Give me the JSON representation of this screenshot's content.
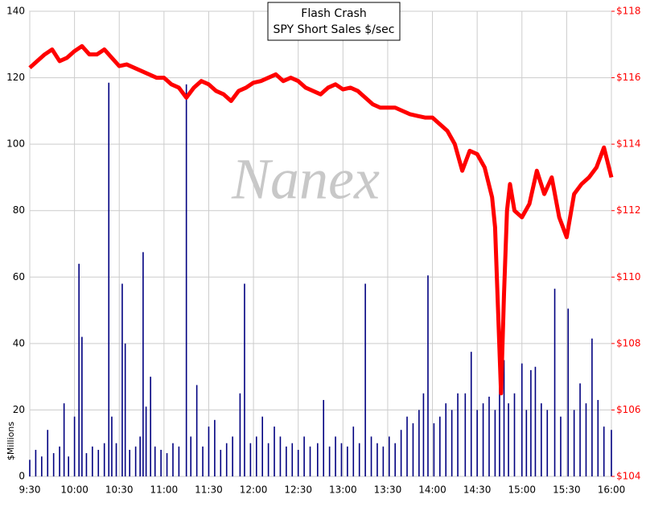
{
  "chart_data": {
    "type": "combo",
    "title": "Flash Crash",
    "subtitle": "SPY Short Sales $/sec",
    "watermark": "Nanex",
    "y_label": "$Millions",
    "grid": true,
    "xlim": [
      570,
      960
    ],
    "xticks": [
      {
        "value": 570,
        "label": "9:30"
      },
      {
        "value": 600,
        "label": "10:00"
      },
      {
        "value": 630,
        "label": "10:30"
      },
      {
        "value": 660,
        "label": "11:00"
      },
      {
        "value": 690,
        "label": "11:30"
      },
      {
        "value": 720,
        "label": "12:00"
      },
      {
        "value": 750,
        "label": "12:30"
      },
      {
        "value": 780,
        "label": "13:00"
      },
      {
        "value": 810,
        "label": "13:30"
      },
      {
        "value": 840,
        "label": "14:00"
      },
      {
        "value": 870,
        "label": "14:30"
      },
      {
        "value": 900,
        "label": "15:00"
      },
      {
        "value": 930,
        "label": "15:30"
      },
      {
        "value": 960,
        "label": "16:00"
      }
    ],
    "ylim": [
      0,
      140
    ],
    "yticks": [
      0,
      20,
      40,
      60,
      80,
      100,
      120,
      140
    ],
    "y2lim": [
      104,
      118
    ],
    "y2ticks": [
      {
        "value": 104,
        "label": "$104"
      },
      {
        "value": 106,
        "label": "$106"
      },
      {
        "value": 108,
        "label": "$108"
      },
      {
        "value": 110,
        "label": "$110"
      },
      {
        "value": 112,
        "label": "$112"
      },
      {
        "value": 114,
        "label": "$114"
      },
      {
        "value": 116,
        "label": "$116"
      },
      {
        "value": 118,
        "label": "$118"
      }
    ],
    "series": [
      {
        "type": "bar",
        "color": "#000080",
        "x": [
          570,
          574,
          578,
          582,
          586,
          590,
          593,
          596,
          600,
          603,
          605,
          608,
          612,
          616,
          620,
          623,
          625,
          628,
          632,
          634,
          637,
          641,
          644,
          646,
          648,
          651,
          654,
          658,
          662,
          666,
          670,
          675,
          678,
          682,
          686,
          690,
          694,
          698,
          702,
          706,
          711,
          714,
          718,
          722,
          726,
          730,
          734,
          738,
          742,
          746,
          750,
          754,
          758,
          763,
          767,
          771,
          775,
          779,
          783,
          787,
          791,
          795,
          799,
          803,
          807,
          811,
          815,
          819,
          823,
          827,
          831,
          834,
          837,
          841,
          845,
          849,
          853,
          857,
          862,
          866,
          870,
          874,
          878,
          882,
          885,
          888,
          891,
          895,
          900,
          903,
          906,
          909,
          913,
          917,
          922,
          926,
          931,
          935,
          939,
          943,
          947,
          951,
          955,
          960
        ],
        "values": [
          5,
          8,
          6,
          14,
          7,
          9,
          22,
          6,
          18,
          64,
          42,
          7,
          9,
          8,
          10,
          118.5,
          18,
          10,
          58,
          40,
          8,
          9,
          12,
          67.5,
          21,
          30,
          9,
          8,
          7,
          10,
          9,
          118,
          12,
          27.5,
          9,
          15,
          17,
          8,
          10,
          12,
          25,
          58,
          10,
          12,
          18,
          10,
          15,
          12,
          9,
          10,
          8,
          12,
          9,
          10,
          23,
          9,
          12,
          10,
          9,
          15,
          10,
          58,
          12,
          10,
          9,
          12,
          10,
          14,
          18,
          16,
          20,
          25,
          60.5,
          16,
          18,
          22,
          20,
          25,
          25,
          37.5,
          20,
          22,
          24,
          20,
          30,
          35,
          22,
          25,
          34,
          20,
          32,
          33,
          22,
          20,
          56.5,
          18,
          50.5,
          20,
          28,
          22,
          41.5,
          23,
          15,
          14
        ]
      },
      {
        "type": "line",
        "axis": "y2",
        "color": "#ff0000",
        "x": [
          570,
          575,
          580,
          585,
          590,
          595,
          600,
          605,
          610,
          615,
          620,
          625,
          630,
          635,
          640,
          645,
          650,
          655,
          660,
          665,
          670,
          675,
          680,
          685,
          690,
          695,
          700,
          705,
          710,
          715,
          720,
          725,
          730,
          735,
          740,
          745,
          750,
          755,
          760,
          765,
          770,
          775,
          780,
          785,
          790,
          795,
          800,
          805,
          810,
          815,
          820,
          825,
          830,
          835,
          840,
          845,
          850,
          855,
          860,
          865,
          870,
          875,
          880,
          882,
          884,
          886,
          887,
          888,
          890,
          892,
          895,
          900,
          905,
          910,
          915,
          920,
          925,
          930,
          935,
          940,
          945,
          950,
          955,
          960
        ],
        "values": [
          116.3,
          116.5,
          116.7,
          116.85,
          116.5,
          116.6,
          116.8,
          116.95,
          116.7,
          116.7,
          116.85,
          116.6,
          116.35,
          116.4,
          116.3,
          116.2,
          116.1,
          116.0,
          116.0,
          115.8,
          115.7,
          115.4,
          115.7,
          115.9,
          115.8,
          115.6,
          115.5,
          115.3,
          115.6,
          115.7,
          115.85,
          115.9,
          116.0,
          116.1,
          115.9,
          116.0,
          115.9,
          115.7,
          115.6,
          115.5,
          115.7,
          115.8,
          115.65,
          115.7,
          115.6,
          115.4,
          115.2,
          115.1,
          115.1,
          115.1,
          115.0,
          114.9,
          114.85,
          114.8,
          114.8,
          114.6,
          114.4,
          114.0,
          113.2,
          113.8,
          113.7,
          113.3,
          112.4,
          111.5,
          109.0,
          106.5,
          108.0,
          109.5,
          112.0,
          112.8,
          112.0,
          111.8,
          112.2,
          113.2,
          112.5,
          113.0,
          111.8,
          111.2,
          112.5,
          112.8,
          113.0,
          113.3,
          113.9,
          113.0
        ]
      }
    ]
  }
}
